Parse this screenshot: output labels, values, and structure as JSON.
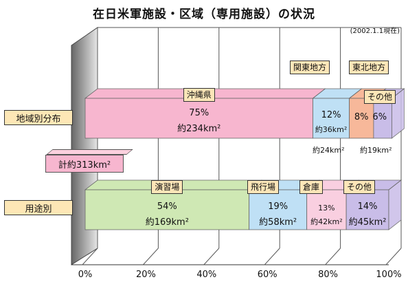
{
  "title": "在日米軍施設・区域（専用施設）の状況",
  "date_note": "(2002.1.1現在)",
  "total_label": "計約313km²",
  "chart_data": {
    "type": "bar",
    "orientation": "horizontal",
    "stacked": true,
    "style": "3d",
    "xlim": [
      0,
      100
    ],
    "x_ticks": [
      "0%",
      "20%",
      "40%",
      "60%",
      "80%",
      "100%"
    ],
    "grid": true,
    "rows": [
      {
        "label": "地域別分布",
        "segments": [
          {
            "name": "沖縄県",
            "percent": 75,
            "pct_label": "75%",
            "area_label": "約234km²",
            "color": "#f7b6cf"
          },
          {
            "name": "関東地方",
            "percent": 12,
            "pct_label": "12%",
            "area_label": "約36km²",
            "color": "#bfe0f5"
          },
          {
            "name": "東北地方",
            "percent": 8,
            "pct_label": "8%",
            "area_label": "約24km²",
            "color": "#f7b89a"
          },
          {
            "name": "その他",
            "percent": 6,
            "pct_label": "6%",
            "area_label": "約19km²",
            "color": "#c9bde8"
          }
        ]
      },
      {
        "label": "用途別",
        "segments": [
          {
            "name": "演習場",
            "percent": 54,
            "pct_label": "54%",
            "area_label": "約169km²",
            "color": "#cfe8b4"
          },
          {
            "name": "飛行場",
            "percent": 19,
            "pct_label": "19%",
            "area_label": "約58km²",
            "color": "#bfe0f5"
          },
          {
            "name": "倉庫",
            "percent": 13,
            "pct_label": "13%",
            "area_label": "約42km²",
            "color": "#f9cfe0"
          },
          {
            "name": "その他",
            "percent": 14,
            "pct_label": "14%",
            "area_label": "約45km²",
            "color": "#c9bde8"
          }
        ]
      }
    ]
  }
}
